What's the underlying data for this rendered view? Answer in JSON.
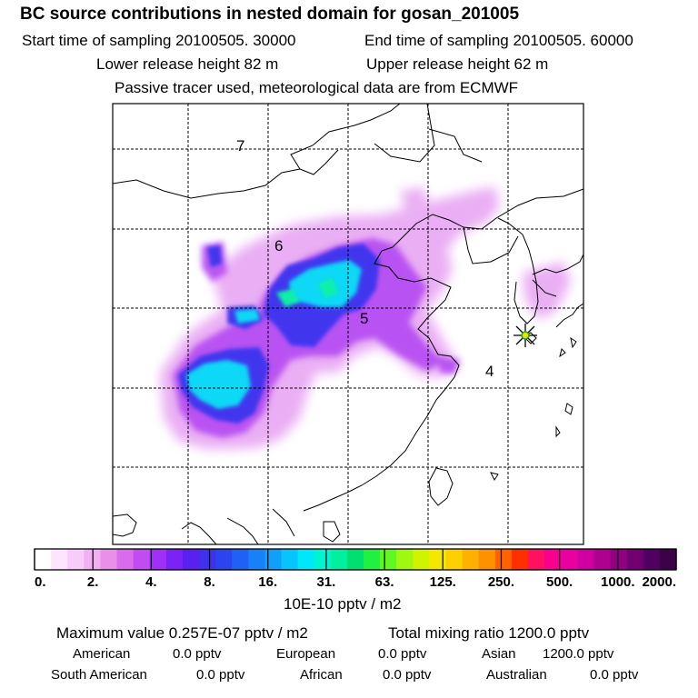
{
  "header": {
    "title": "BC  source contributions in nested domain for gosan_201005",
    "start_time": "Start time of sampling 20100505. 30000",
    "end_time": "End time of sampling 20100505. 60000",
    "lower_height": "Lower release height   82 m",
    "upper_height": "Upper release height   62 m",
    "tracer_note": "Passive tracer used, meteorological data are from ECMWF"
  },
  "map": {
    "region_labels": [
      "7",
      "6",
      "5",
      "4"
    ],
    "receptor": "gosan"
  },
  "colorbar": {
    "ticks": [
      "0.",
      "2.",
      "4.",
      "8.",
      "16.",
      "31.",
      "63.",
      "125.",
      "250.",
      "500.",
      "1000.",
      "2000."
    ],
    "unit": "10E-10 pptv / m2",
    "colors": [
      "#ffffff",
      "#fde6fd",
      "#f8ccf8",
      "#f2b0f2",
      "#e98ee9",
      "#d96cec",
      "#c24cf2",
      "#a030f6",
      "#7b22f4",
      "#5a20f0",
      "#4030ec",
      "#2c44f0",
      "#2060f4",
      "#1880f8",
      "#10a0fa",
      "#08c4fc",
      "#00e8f8",
      "#00f4d0",
      "#00f0a0",
      "#00e070",
      "#20f040",
      "#60f820",
      "#a0f810",
      "#d0f400",
      "#f4e800",
      "#ffd000",
      "#ffb000",
      "#ff9000",
      "#ff6000",
      "#ff3000",
      "#ff1060",
      "#f80090",
      "#e800a0",
      "#d000a0",
      "#b00090",
      "#900080",
      "#700070",
      "#500060",
      "#3c0048"
    ]
  },
  "footer": {
    "max_value": "Maximum value  0.257E-07 pptv / m2",
    "total_mixing": "Total mixing ratio     1200.0 pptv",
    "american_label": "American",
    "american_value": "0.0 pptv",
    "european_label": "European",
    "european_value": "0.0 pptv",
    "asian_label": "Asian",
    "asian_value": "1200.0 pptv",
    "south_american_label": "South American",
    "south_american_value": "0.0 pptv",
    "african_label": "African",
    "african_value": "0.0 pptv",
    "australian_label": "Australian",
    "australian_value": "0.0 pptv"
  }
}
